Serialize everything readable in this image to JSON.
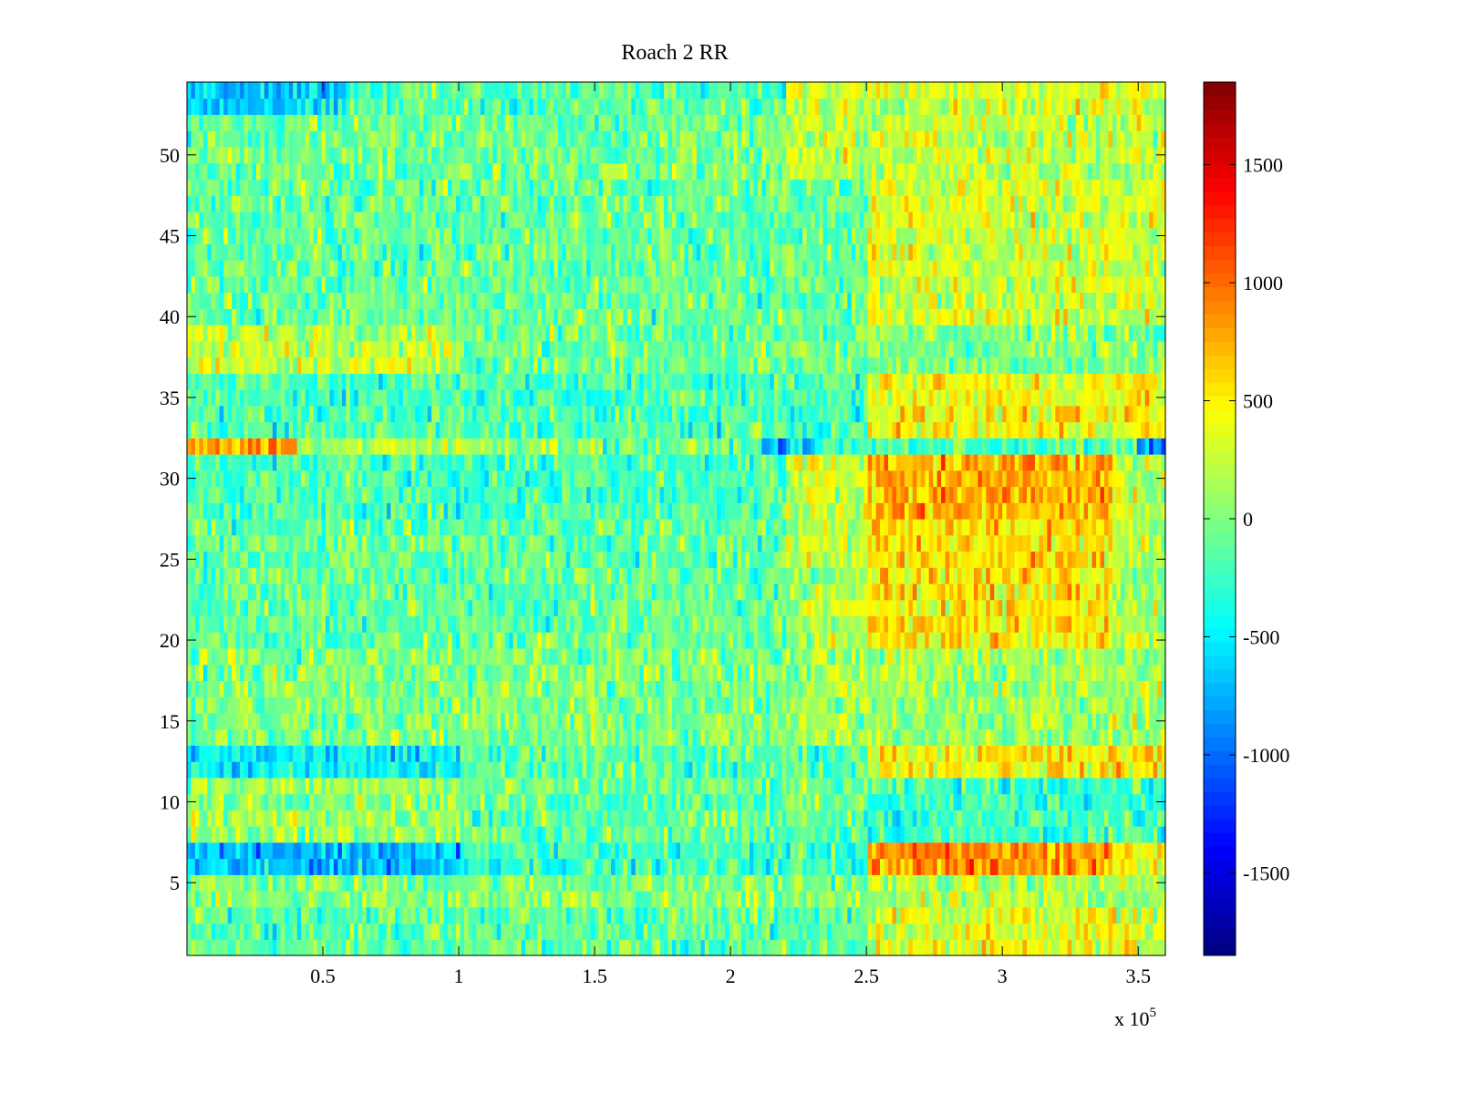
{
  "chart_data": {
    "type": "heatmap",
    "title": "Roach 2 RR",
    "xlabel": "",
    "ylabel": "",
    "x_exponent_label": "x 10",
    "x_exponent_power": "5",
    "xlim": [
      0,
      3.6
    ],
    "ylim": [
      0.5,
      54.5
    ],
    "x_ticks": [
      0.5,
      1,
      1.5,
      2,
      2.5,
      3,
      3.5
    ],
    "x_tick_labels": [
      "0.5",
      "1",
      "1.5",
      "2",
      "2.5",
      "3",
      "3.5"
    ],
    "y_ticks": [
      5,
      10,
      15,
      20,
      25,
      30,
      35,
      40,
      45,
      50
    ],
    "y_tick_labels": [
      "5",
      "10",
      "15",
      "20",
      "25",
      "30",
      "35",
      "40",
      "45",
      "50"
    ],
    "rows": 54,
    "colorbar": {
      "colormap": "jet",
      "clim": [
        -1850,
        1850
      ],
      "ticks": [
        -1500,
        -1000,
        -500,
        0,
        500,
        1000,
        1500
      ],
      "tick_labels": [
        "-1500",
        "-1000",
        "-500",
        "0",
        "500",
        "1000",
        "1500"
      ]
    },
    "row_profiles": [
      {
        "rows": [
          1,
          2,
          3
        ],
        "segments": [
          [
            0,
            2.5,
            -120
          ],
          [
            2.5,
            3.6,
            350
          ]
        ]
      },
      {
        "rows": [
          4,
          5
        ],
        "segments": [
          [
            0,
            2.5,
            0
          ],
          [
            2.5,
            3.6,
            150
          ]
        ]
      },
      {
        "rows": [
          6,
          7
        ],
        "segments": [
          [
            0,
            1.0,
            -700
          ],
          [
            1.0,
            2.5,
            -250
          ],
          [
            2.5,
            3.4,
            850
          ],
          [
            3.4,
            3.6,
            500
          ]
        ]
      },
      {
        "rows": [
          8,
          9,
          10,
          11
        ],
        "segments": [
          [
            0,
            1.0,
            100
          ],
          [
            1.0,
            2.5,
            -100
          ],
          [
            2.5,
            3.6,
            -250
          ]
        ]
      },
      {
        "rows": [
          12,
          13
        ],
        "segments": [
          [
            0,
            1.0,
            -500
          ],
          [
            1.0,
            2.5,
            -150
          ],
          [
            2.5,
            3.6,
            500
          ]
        ]
      },
      {
        "rows": [
          14,
          15,
          16,
          17,
          18,
          19
        ],
        "segments": [
          [
            0,
            2.3,
            0
          ],
          [
            2.3,
            3.6,
            120
          ]
        ]
      },
      {
        "rows": [
          20,
          21,
          22,
          23,
          24,
          25,
          26,
          27
        ],
        "segments": [
          [
            0,
            2.2,
            -100
          ],
          [
            2.2,
            2.5,
            200
          ],
          [
            2.5,
            3.4,
            550
          ],
          [
            3.4,
            3.6,
            150
          ]
        ]
      },
      {
        "rows": [
          28,
          29,
          30,
          31
        ],
        "segments": [
          [
            0,
            2.2,
            -200
          ],
          [
            2.2,
            2.5,
            300
          ],
          [
            2.5,
            3.4,
            750
          ],
          [
            3.4,
            3.6,
            200
          ]
        ]
      },
      {
        "rows": [
          32
        ],
        "segments": [
          [
            0,
            0.4,
            850
          ],
          [
            0.4,
            1.5,
            150
          ],
          [
            1.5,
            2.1,
            -50
          ],
          [
            2.1,
            2.3,
            -700
          ],
          [
            2.3,
            2.5,
            -300
          ],
          [
            2.5,
            3.5,
            -200
          ],
          [
            3.5,
            3.6,
            -900
          ]
        ]
      },
      {
        "rows": [
          33,
          34,
          35,
          36
        ],
        "segments": [
          [
            0,
            2.5,
            -200
          ],
          [
            2.5,
            3.6,
            450
          ]
        ]
      },
      {
        "rows": [
          37,
          38,
          39
        ],
        "segments": [
          [
            0,
            1.0,
            250
          ],
          [
            1.0,
            2.5,
            -50
          ],
          [
            2.5,
            3.6,
            0
          ]
        ]
      },
      {
        "rows": [
          40,
          41,
          42,
          43,
          44,
          45,
          46,
          47,
          48
        ],
        "segments": [
          [
            0,
            2.5,
            -100
          ],
          [
            2.5,
            3.6,
            300
          ]
        ]
      },
      {
        "rows": [
          49,
          50,
          51,
          52
        ],
        "segments": [
          [
            0,
            2.2,
            -50
          ],
          [
            2.2,
            3.6,
            250
          ]
        ]
      },
      {
        "rows": [
          53,
          54
        ],
        "segments": [
          [
            0,
            0.6,
            -600
          ],
          [
            0.6,
            2.2,
            -150
          ],
          [
            2.2,
            3.6,
            300
          ]
        ]
      }
    ]
  }
}
